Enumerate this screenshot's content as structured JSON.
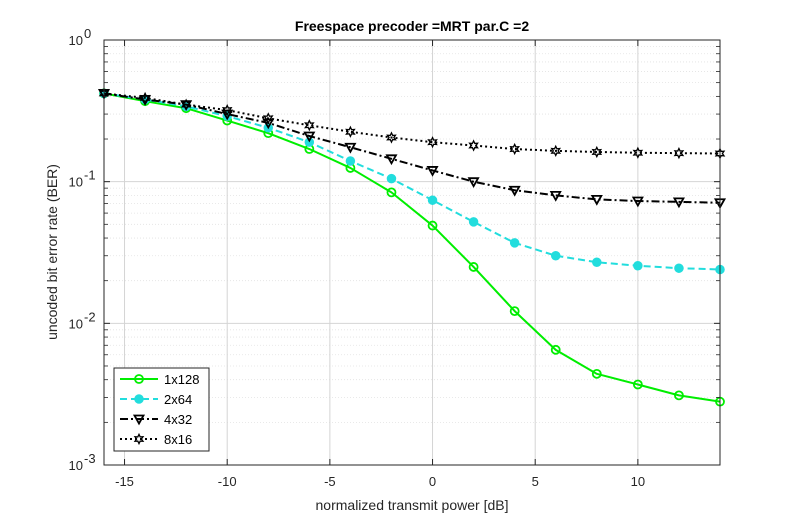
{
  "chart_data": {
    "type": "line",
    "title": "Freespace precoder =MRT par.C =2",
    "xlabel": "normalized transmit power [dB]",
    "ylabel": "uncoded bit error rate (BER)",
    "xlim": [
      -16,
      14
    ],
    "ylim": [
      0.001,
      1
    ],
    "yscale": "log",
    "xticks": [
      -15,
      -10,
      -5,
      0,
      5,
      10
    ],
    "xtick_labels": [
      "-15",
      "-10",
      "-5",
      "0",
      "5",
      "10"
    ],
    "ytick_base": "10",
    "ytick_exponents": [
      "-3",
      "-2",
      "-1",
      "0"
    ],
    "grid": true,
    "minor_grid": true,
    "legend_position": "bottom-left",
    "x": [
      -16,
      -14,
      -12,
      -10,
      -8,
      -6,
      -4,
      -2,
      0,
      2,
      4,
      6,
      8,
      10,
      12,
      14
    ],
    "series": [
      {
        "name": "1x128",
        "color": "#00ee00",
        "dash": "solid",
        "marker": "circle",
        "values": [
          0.42,
          0.37,
          0.33,
          0.27,
          0.22,
          0.17,
          0.125,
          0.084,
          0.049,
          0.025,
          0.0122,
          0.0065,
          0.0044,
          0.0037,
          0.0031,
          0.0028
        ]
      },
      {
        "name": "2x64",
        "color": "#22dddd",
        "dash": "dashed",
        "marker": "circle-filled",
        "values": [
          0.42,
          0.38,
          0.34,
          0.29,
          0.24,
          0.19,
          0.14,
          0.105,
          0.074,
          0.052,
          0.037,
          0.03,
          0.027,
          0.0255,
          0.0245,
          0.024
        ]
      },
      {
        "name": "4x32",
        "color": "#000000",
        "dash": "dashdot",
        "marker": "triangle-down",
        "values": [
          0.42,
          0.38,
          0.35,
          0.3,
          0.26,
          0.21,
          0.175,
          0.145,
          0.12,
          0.1,
          0.087,
          0.08,
          0.075,
          0.073,
          0.072,
          0.071
        ]
      },
      {
        "name": "8x16",
        "color": "#000000",
        "dash": "dotted",
        "marker": "hexagram",
        "values": [
          0.42,
          0.39,
          0.35,
          0.32,
          0.28,
          0.25,
          0.225,
          0.205,
          0.19,
          0.18,
          0.17,
          0.165,
          0.162,
          0.16,
          0.159,
          0.158
        ]
      }
    ]
  }
}
